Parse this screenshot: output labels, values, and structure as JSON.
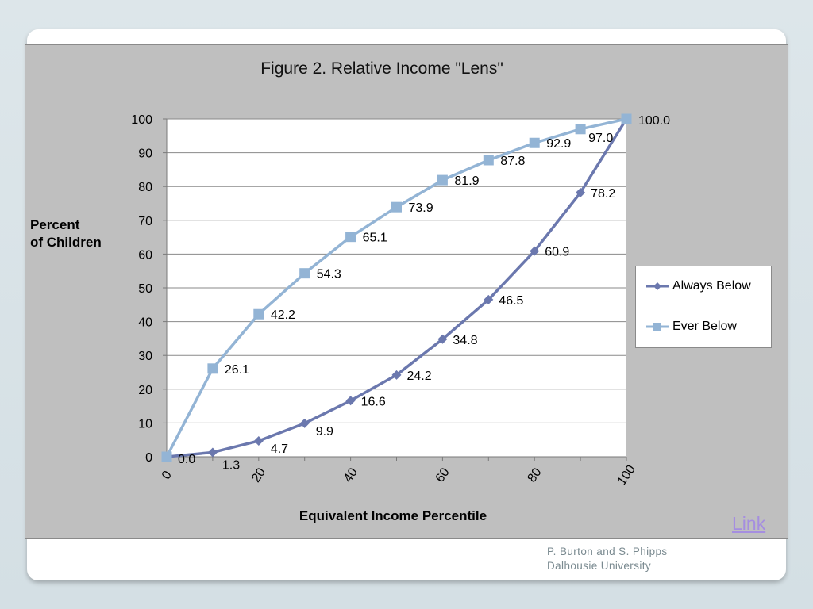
{
  "footer": {
    "link_label": "Link",
    "author": "P. Burton and S. Phipps",
    "affiliation": "Dalhousie University"
  },
  "colors": {
    "always_below": "#6b78ae",
    "ever_below": "#93b4d5",
    "panel": "#bfbfbf",
    "gridline": "#8a8a8a"
  },
  "chart_data": {
    "type": "line",
    "title": "Figure 2. Relative Income \"Lens\"",
    "xlabel": "Equivalent Income Percentile",
    "ylabel_lines": [
      "Percent",
      "of Children"
    ],
    "xlim": [
      0,
      100
    ],
    "ylim": [
      0,
      100
    ],
    "xticks": [
      0,
      20,
      40,
      60,
      80,
      100
    ],
    "yticks": [
      0,
      10,
      20,
      30,
      40,
      50,
      60,
      70,
      80,
      90,
      100
    ],
    "grid": true,
    "legend_position": "right",
    "x": [
      0,
      10,
      20,
      30,
      40,
      50,
      60,
      70,
      80,
      90,
      100
    ],
    "series": [
      {
        "name": "Always Below",
        "marker": "diamond",
        "values": [
          0.0,
          1.3,
          4.7,
          9.9,
          16.6,
          24.2,
          34.8,
          46.5,
          60.9,
          78.2,
          100.0
        ],
        "labels": [
          "",
          "1.3",
          "4.7",
          "9.9",
          "16.6",
          "24.2",
          "34.8",
          "46.5",
          "60.9",
          "78.2",
          ""
        ]
      },
      {
        "name": "Ever Below",
        "marker": "square",
        "values": [
          0.0,
          26.1,
          42.2,
          54.3,
          65.1,
          73.9,
          81.9,
          87.8,
          92.9,
          97.0,
          100.0
        ],
        "labels": [
          "0.0",
          "26.1",
          "42.2",
          "54.3",
          "65.1",
          "73.9",
          "81.9",
          "87.8",
          "92.9",
          "97.0",
          "100.0"
        ]
      }
    ]
  }
}
